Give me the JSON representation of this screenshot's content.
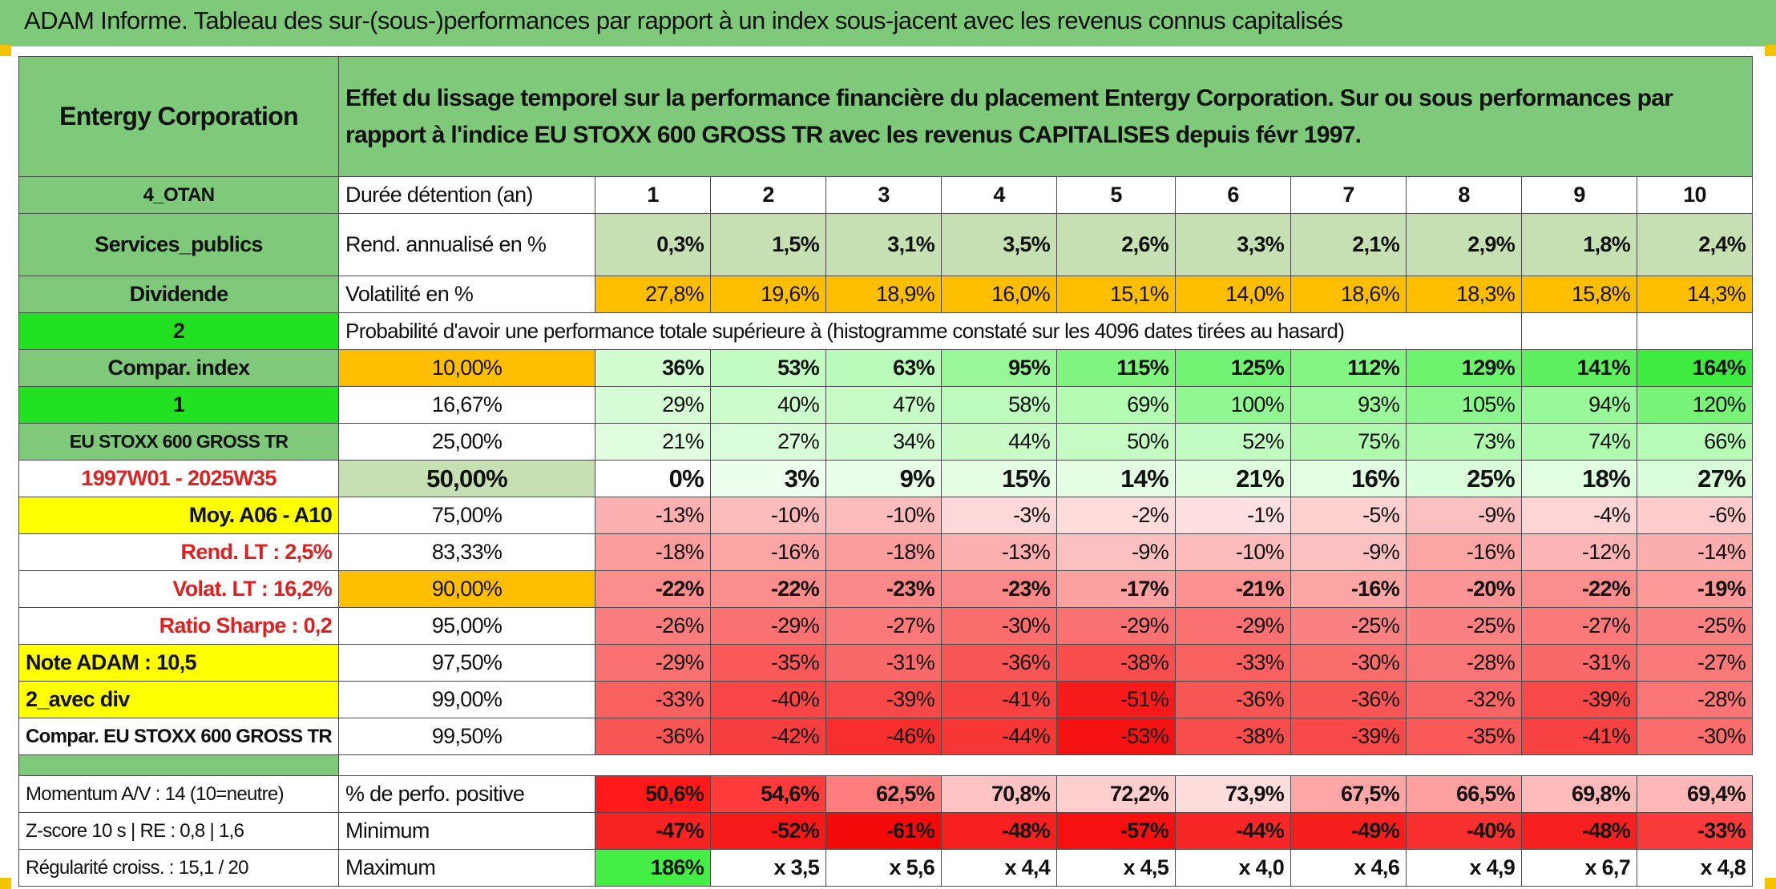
{
  "title": "ADAM Informe. Tableau des sur-(sous-)performances par rapport à un index sous-jacent avec les revenus connus capitalisés",
  "left": {
    "company": "Entergy Corporation",
    "code": "4_OTAN",
    "sector": "Services_publics",
    "dividend_label": "Dividende",
    "dividend_value": "2",
    "compar_index": "Compar. index",
    "compar_value": "1",
    "index_name": "EU STOXX 600 GROSS TR",
    "period": "1997W01 - 2025W35",
    "moy": "Moy. A06 - A10",
    "rend_lt": "Rend. LT :   2,5%",
    "volat_lt": "Volat. LT :   16,2%",
    "sharpe": "Ratio Sharpe :   0,2",
    "note": "Note ADAM : 10,5",
    "avec_div": "2_avec div",
    "compar_full": "Compar. EU STOXX 600 GROSS TR",
    "momentum": "Momentum A/V : 14 (10=neutre)",
    "zscore": "Z-score 10 s | RE : 0,8 | 1,6",
    "regularite": "Régularité croiss. : 15,1 / 20"
  },
  "description": "Effet du lissage temporel sur la performance financière du placement Entergy Corporation. Sur ou sous performances par rapport à l'indice EU STOXX 600 GROSS TR avec les revenus CAPITALISES depuis févr 1997.",
  "row_labels": {
    "duree": "Durée détention (an)",
    "rend": "Rend. annualisé en %",
    "vol": "Volatilité en %",
    "proba": "Probabilité d'avoir une performance totale supérieure à (histogramme constaté sur les 4096 dates tirées au hasard)",
    "pos": "% de perfo. positive",
    "min": "Minimum",
    "max": "Maximum"
  },
  "colors": {
    "header_green": "#7ec97a",
    "bright_green": "#22e022",
    "yellow": "#ffff00",
    "orange": "#ffbf00",
    "light_green": "#c6e0b4",
    "red_text": "#e02020"
  },
  "chart_data": {
    "type": "table",
    "years": [
      "1",
      "2",
      "3",
      "4",
      "5",
      "6",
      "7",
      "8",
      "9",
      "10"
    ],
    "rend": [
      "0,3%",
      "1,5%",
      "3,1%",
      "3,5%",
      "2,6%",
      "3,3%",
      "2,1%",
      "2,9%",
      "1,8%",
      "2,4%"
    ],
    "vol": [
      "27,8%",
      "19,6%",
      "18,9%",
      "16,0%",
      "15,1%",
      "14,0%",
      "18,6%",
      "18,3%",
      "15,8%",
      "14,3%"
    ],
    "percentiles": [
      {
        "p": "10,00%",
        "values": [
          36,
          53,
          63,
          95,
          115,
          125,
          112,
          129,
          141,
          164
        ]
      },
      {
        "p": "16,67%",
        "values": [
          29,
          40,
          47,
          58,
          69,
          100,
          93,
          105,
          94,
          120
        ]
      },
      {
        "p": "25,00%",
        "values": [
          21,
          27,
          34,
          44,
          50,
          52,
          75,
          73,
          74,
          66
        ]
      },
      {
        "p": "50,00%",
        "values": [
          0,
          3,
          9,
          15,
          14,
          21,
          16,
          25,
          18,
          27
        ]
      },
      {
        "p": "75,00%",
        "values": [
          -13,
          -10,
          -10,
          -3,
          -2,
          -1,
          -5,
          -9,
          -4,
          -6
        ]
      },
      {
        "p": "83,33%",
        "values": [
          -18,
          -16,
          -18,
          -13,
          -9,
          -10,
          -9,
          -16,
          -12,
          -14
        ]
      },
      {
        "p": "90,00%",
        "values": [
          -22,
          -22,
          -23,
          -23,
          -17,
          -21,
          -16,
          -20,
          -22,
          -19
        ]
      },
      {
        "p": "95,00%",
        "values": [
          -26,
          -29,
          -27,
          -30,
          -29,
          -29,
          -25,
          -25,
          -27,
          -25
        ]
      },
      {
        "p": "97,50%",
        "values": [
          -29,
          -35,
          -31,
          -36,
          -38,
          -33,
          -30,
          -28,
          -31,
          -27
        ]
      },
      {
        "p": "99,00%",
        "values": [
          -33,
          -40,
          -39,
          -41,
          -51,
          -36,
          -36,
          -32,
          -39,
          -28
        ]
      },
      {
        "p": "99,50%",
        "values": [
          -36,
          -42,
          -46,
          -44,
          -53,
          -38,
          -39,
          -35,
          -41,
          -30
        ]
      }
    ],
    "pos": [
      50.6,
      54.6,
      62.5,
      70.8,
      72.2,
      73.9,
      67.5,
      66.5,
      69.8,
      69.4
    ],
    "pos_text": [
      "50,6%",
      "54,6%",
      "62,5%",
      "70,8%",
      "72,2%",
      "73,9%",
      "67,5%",
      "66,5%",
      "69,8%",
      "69,4%"
    ],
    "min": [
      -47,
      -52,
      -61,
      -48,
      -57,
      -44,
      -49,
      -40,
      -48,
      -33
    ],
    "max": [
      "186%",
      "x 3,5",
      "x 5,6",
      "x 4,4",
      "x 4,5",
      "x 4,0",
      "x 4,6",
      "x 4,9",
      "x 6,7",
      "x 4,8"
    ]
  }
}
